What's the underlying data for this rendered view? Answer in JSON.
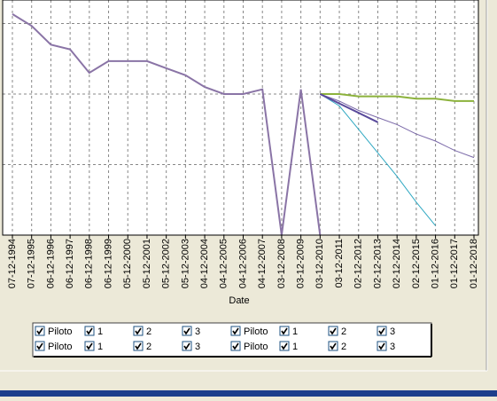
{
  "chart_data": {
    "type": "line",
    "x_label": "Date",
    "categories": [
      "07-12-1994",
      "07-12-1995",
      "06-12-1996",
      "06-12-1997",
      "06-12-1998",
      "06-12-1999",
      "05-12-2000",
      "05-12-2001",
      "05-12-2002",
      "05-12-2003",
      "04-12-2004",
      "04-12-2005",
      "04-12-2006",
      "04-12-2007",
      "03-12-2008",
      "03-12-2009",
      "03-12-2010",
      "03-12-2011",
      "02-12-2012",
      "02-12-2013",
      "02-12-2014",
      "02-12-2015",
      "01-12-2016",
      "01-12-2017",
      "01-12-2018"
    ],
    "ylim": [
      0,
      10
    ],
    "ygrid": [
      3,
      6,
      9
    ],
    "grid": true,
    "series": [
      {
        "color": "#8a74a6",
        "width": 2,
        "values": [
          9.4,
          8.9,
          8.1,
          7.9,
          6.9,
          7.4,
          7.4,
          7.4,
          7.1,
          6.8,
          6.3,
          6.0,
          6.0,
          6.2,
          0,
          6.2,
          0,
          null,
          null,
          null,
          null,
          null,
          null,
          null,
          null
        ]
      },
      {
        "color": "#8cb23c",
        "width": 2,
        "values": [
          null,
          null,
          null,
          null,
          null,
          null,
          null,
          null,
          null,
          null,
          null,
          null,
          null,
          null,
          null,
          null,
          6.0,
          6.0,
          5.9,
          5.9,
          5.9,
          5.8,
          5.8,
          5.7,
          5.7
        ]
      },
      {
        "color": "#7a68a8",
        "width": 1,
        "values": [
          null,
          null,
          null,
          null,
          null,
          null,
          null,
          null,
          null,
          null,
          null,
          null,
          null,
          null,
          null,
          null,
          6.0,
          5.7,
          5.3,
          5.0,
          4.7,
          4.3,
          4.0,
          3.6,
          3.3
        ]
      },
      {
        "color": "#2fa8c2",
        "width": 1,
        "values": [
          null,
          null,
          null,
          null,
          null,
          null,
          null,
          null,
          null,
          null,
          null,
          null,
          null,
          null,
          null,
          null,
          6.0,
          5.5,
          4.5,
          3.5,
          2.5,
          1.4,
          0.4,
          null,
          null
        ]
      },
      {
        "color": "#5a4a9c",
        "width": 2,
        "values": [
          null,
          null,
          null,
          null,
          null,
          null,
          null,
          null,
          null,
          null,
          null,
          null,
          null,
          null,
          null,
          null,
          6.0,
          5.6,
          5.2,
          4.8,
          null,
          null,
          null,
          null,
          null
        ]
      }
    ]
  },
  "legend": {
    "rows": [
      [
        {
          "label": "Piloto",
          "checked": true
        },
        {
          "label": "1",
          "checked": true
        },
        {
          "label": "2",
          "checked": true
        },
        {
          "label": "3",
          "checked": true
        },
        {
          "label": "Piloto",
          "checked": true
        },
        {
          "label": "1",
          "checked": true
        },
        {
          "label": "2",
          "checked": true
        },
        {
          "label": "3",
          "checked": true
        }
      ],
      [
        {
          "label": "Piloto",
          "checked": true
        },
        {
          "label": "1",
          "checked": true
        },
        {
          "label": "2",
          "checked": true
        },
        {
          "label": "3",
          "checked": true
        },
        {
          "label": "Piloto",
          "checked": true
        },
        {
          "label": "1",
          "checked": true
        },
        {
          "label": "2",
          "checked": true
        },
        {
          "label": "3",
          "checked": true
        }
      ]
    ]
  }
}
